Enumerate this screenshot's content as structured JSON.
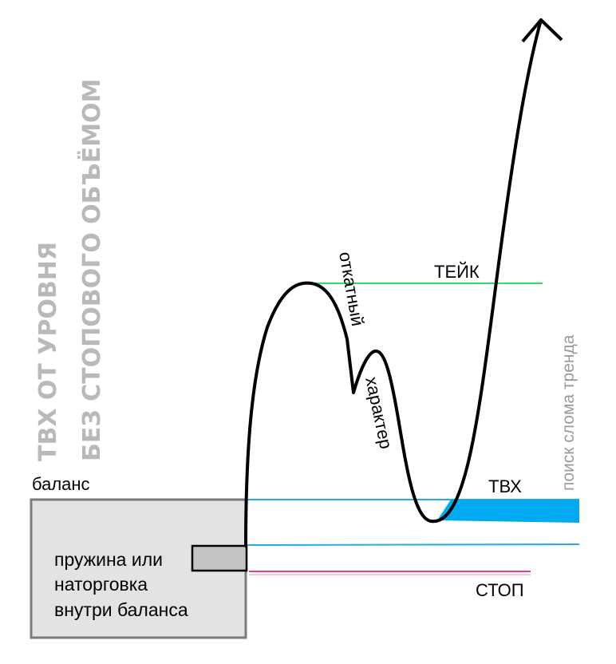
{
  "title": {
    "line1": "ТВХ ОТ УРОВНЯ",
    "line2": "БЕЗ СТОПОВОГО ОБЪЁМОМ"
  },
  "labels": {
    "balance": "баланс",
    "box_line1": "пружина или",
    "box_line2": "наторговка",
    "box_line3": "внутри баланса",
    "take": "ТЕЙК",
    "entry": "ТВХ",
    "stop": "СТОП",
    "pullback_word1": "откатный",
    "pullback_word2": "характер",
    "trend_search": "поиск слома тренда"
  },
  "colors": {
    "take_line": "#34d96a",
    "entry_zone": "#00aaf0",
    "level_line": "#29a9e6",
    "stop_line": "#e8407a",
    "balance_fill": "#e3e3e3",
    "balance_border": "#7b7b7b",
    "title_grey": "#b9b9b9"
  }
}
